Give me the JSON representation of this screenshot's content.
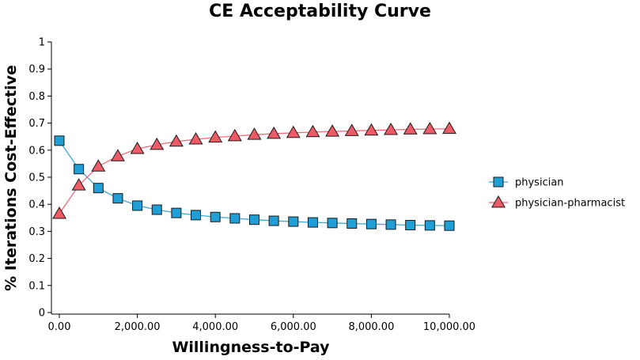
{
  "chart_data": {
    "type": "line",
    "title": "CE Acceptability Curve",
    "xlabel": "Willingness-to-Pay",
    "ylabel": "% Iterations Cost-Effective",
    "xlim": [
      0,
      10000
    ],
    "ylim": [
      0,
      1
    ],
    "x_ticks": [
      "0.00",
      "2,000.00",
      "4,000.00",
      "6,000.00",
      "8,000.00",
      "10,000.00"
    ],
    "y_ticks": [
      "0",
      "0.1",
      "0.2",
      "0.3",
      "0.4",
      "0.5",
      "0.6",
      "0.7",
      "0.8",
      "0.9",
      "1"
    ],
    "grid": false,
    "legend_position": "right",
    "x": [
      0,
      500,
      1000,
      1500,
      2000,
      2500,
      3000,
      3500,
      4000,
      4500,
      5000,
      5500,
      6000,
      6500,
      7000,
      7500,
      8000,
      8500,
      9000,
      9500,
      10000
    ],
    "series": [
      {
        "name": "physician",
        "marker": "square",
        "color": "#1f9fd6",
        "line_color": "#3aa7cf",
        "values": [
          0.635,
          0.53,
          0.46,
          0.422,
          0.395,
          0.38,
          0.368,
          0.36,
          0.353,
          0.348,
          0.343,
          0.339,
          0.336,
          0.333,
          0.331,
          0.329,
          0.327,
          0.325,
          0.323,
          0.322,
          0.321
        ]
      },
      {
        "name": "physician-pharmacist",
        "marker": "triangle",
        "color": "#ee5a66",
        "line_color": "#ee6b78",
        "values": [
          0.365,
          0.47,
          0.54,
          0.578,
          0.605,
          0.62,
          0.632,
          0.64,
          0.647,
          0.652,
          0.657,
          0.661,
          0.664,
          0.667,
          0.669,
          0.671,
          0.673,
          0.675,
          0.677,
          0.678,
          0.679
        ]
      }
    ]
  }
}
